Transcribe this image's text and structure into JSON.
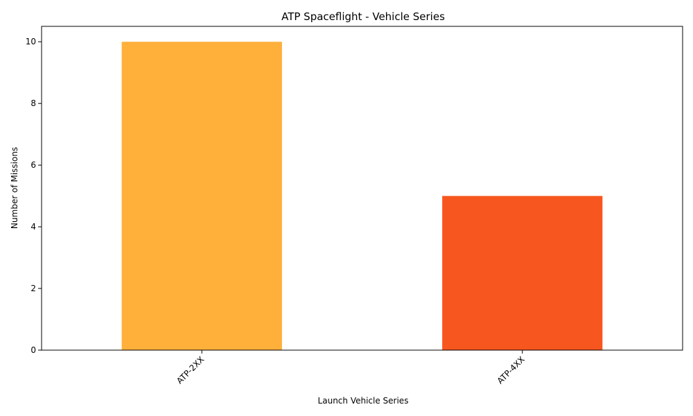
{
  "chart_data": {
    "type": "bar",
    "title": "ATP Spaceflight - Vehicle Series",
    "xlabel": "Launch Vehicle Series",
    "ylabel": "Number of Missions",
    "categories": [
      "ATP-2XX",
      "ATP-4XX"
    ],
    "values": [
      10,
      5
    ],
    "colors": [
      "#ffb03b",
      "#f7571f"
    ],
    "ylim": [
      0,
      10.5
    ],
    "yticks": [
      0,
      2,
      4,
      6,
      8,
      10
    ],
    "grid": false,
    "legend": "none"
  }
}
